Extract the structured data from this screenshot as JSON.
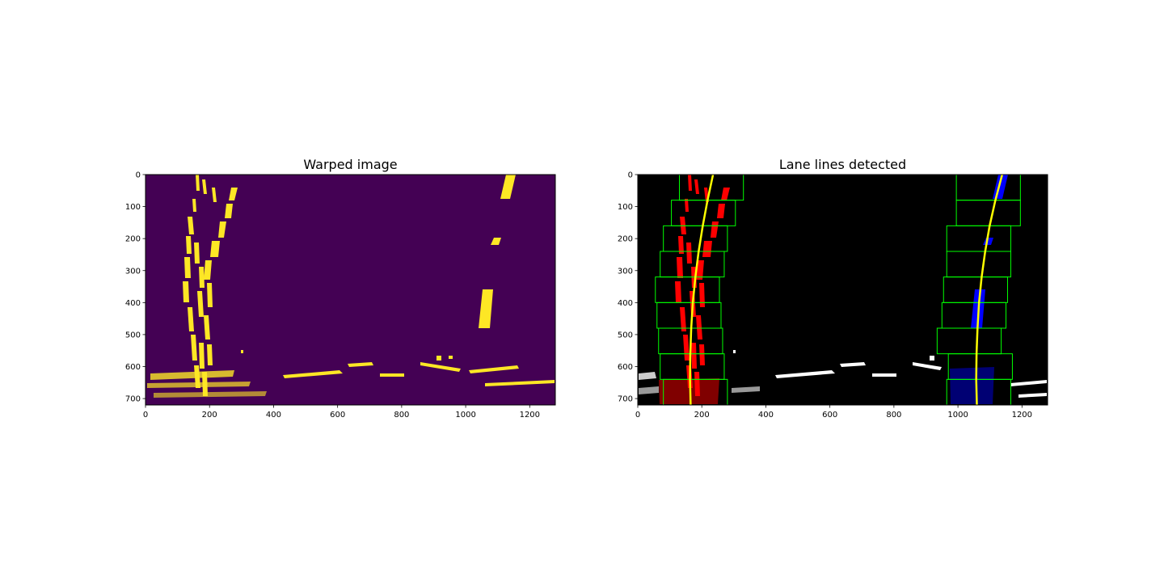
{
  "chart_data": [
    {
      "type": "heatmap",
      "title": "Warped image",
      "xlim": [
        0,
        1280
      ],
      "ylim": [
        720,
        0
      ],
      "xticks": [
        "0",
        "200",
        "400",
        "600",
        "800",
        "1000",
        "1200"
      ],
      "yticks": [
        "0",
        "100",
        "200",
        "300",
        "400",
        "500",
        "600",
        "700"
      ],
      "colors": {
        "background": "#440154",
        "pixel": "#fde725"
      },
      "image_content": "binary lane-pixel mask (bird's-eye view)"
    },
    {
      "type": "heatmap",
      "title": "Lane lines detected",
      "xlim": [
        0,
        1280
      ],
      "ylim": [
        720,
        0
      ],
      "xticks": [
        "0",
        "200",
        "400",
        "600",
        "800",
        "1000",
        "1200"
      ],
      "yticks": [
        "0",
        "100",
        "200",
        "300",
        "400",
        "500",
        "600",
        "700"
      ],
      "colors": {
        "background": "#000000",
        "left_pixels": "#ff0000",
        "right_pixels": "#0000ff",
        "other_pixels": "#ffffff",
        "windows": "#00ff00",
        "fit": "#ffff00"
      },
      "sliding_windows": {
        "window_height": 80,
        "left_x_ranges": [
          [
            130,
            330
          ],
          [
            105,
            305
          ],
          [
            80,
            280
          ],
          [
            70,
            270
          ],
          [
            55,
            255
          ],
          [
            60,
            260
          ],
          [
            65,
            265
          ],
          [
            70,
            270
          ],
          [
            80,
            280
          ]
        ],
        "right_x_ranges": [
          [
            995,
            1195
          ],
          [
            995,
            1195
          ],
          [
            965,
            1165
          ],
          [
            965,
            1165
          ],
          [
            955,
            1155
          ],
          [
            950,
            1150
          ],
          [
            935,
            1135
          ],
          [
            970,
            1170
          ],
          [
            965,
            1165
          ]
        ]
      },
      "fit_lines": {
        "left": {
          "y": [
            0,
            80,
            160,
            240,
            320,
            400,
            480,
            560,
            640,
            720
          ],
          "x": [
            235,
            218,
            203,
            190,
            180,
            172,
            167,
            164,
            163,
            165
          ]
        },
        "right": {
          "y": [
            0,
            80,
            160,
            240,
            320,
            400,
            480,
            560,
            640,
            720
          ],
          "x": [
            1138,
            1117,
            1099,
            1085,
            1074,
            1066,
            1061,
            1058,
            1057,
            1059
          ]
        }
      }
    }
  ]
}
